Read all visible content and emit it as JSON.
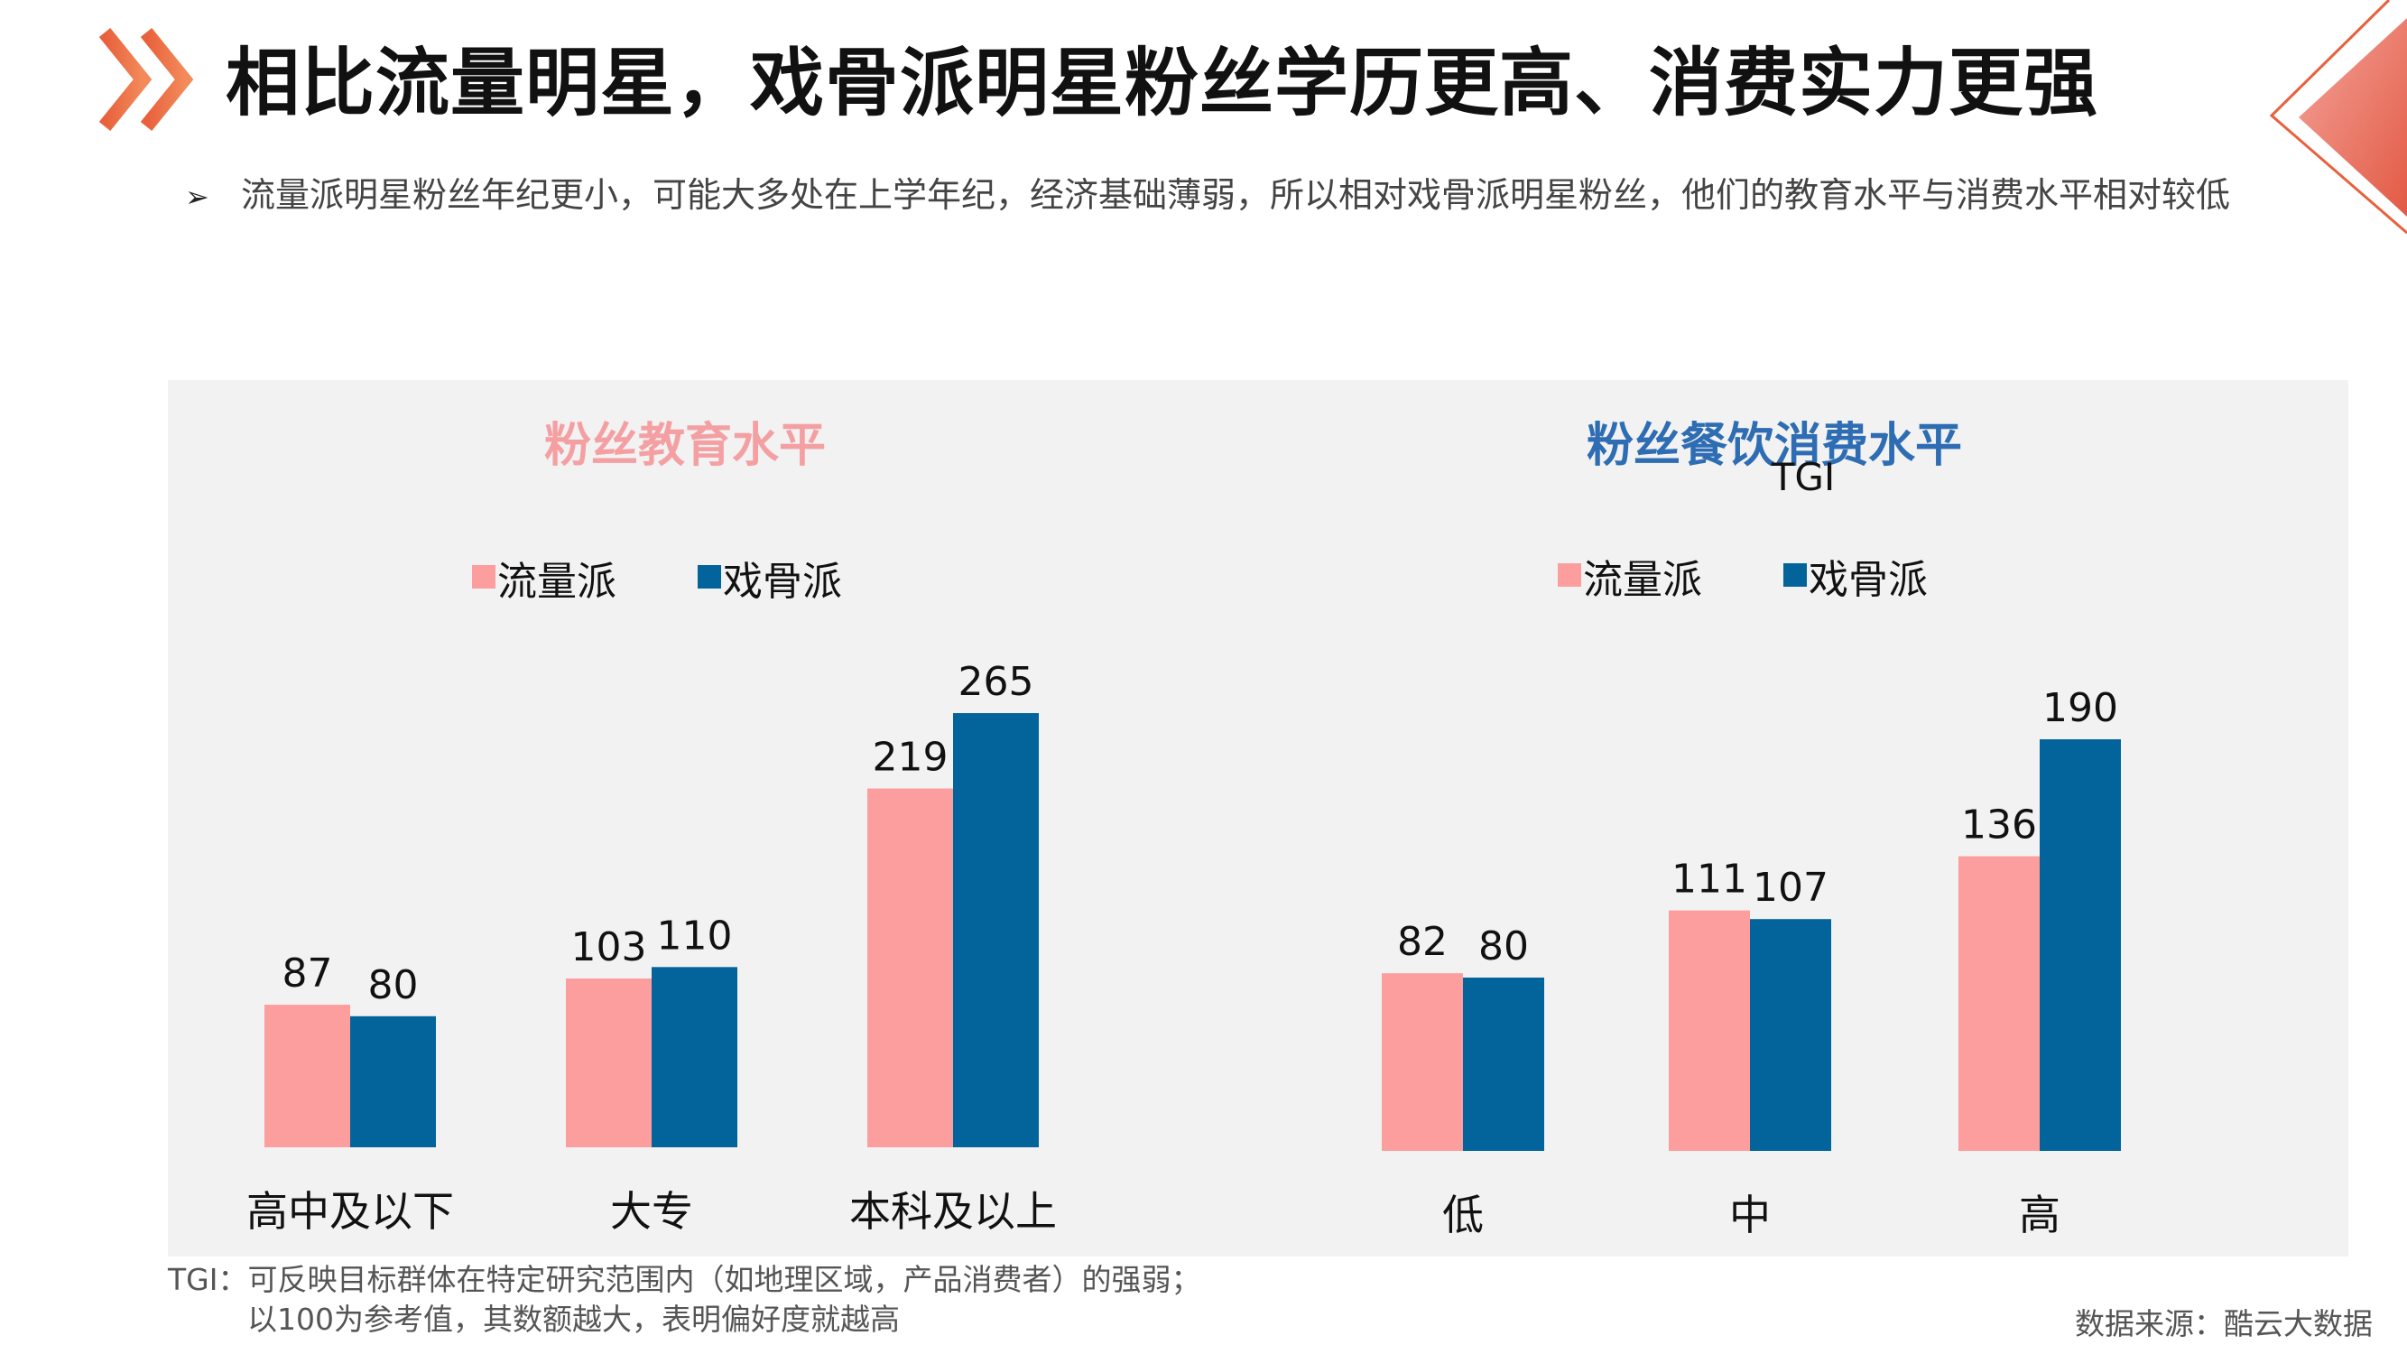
{
  "header": {
    "title": "相比流量明星，戏骨派明星粉丝学历更高、消费实力更强",
    "subtitle": "流量派明星粉丝年纪更小，可能大多处在上学年纪，经济基础薄弱，所以相对戏骨派明星粉丝，他们的教育水平与消费水平相对较低",
    "arrow": "➢"
  },
  "colors": {
    "series_a": "#FC9D9E",
    "series_b": "#02649A",
    "left_title": "#F4A0A3",
    "right_title": "#2E6DB3",
    "accent": "#E8603C"
  },
  "chart_data": [
    {
      "type": "bar",
      "title": "粉丝教育水平",
      "categories": [
        "高中及以下",
        "大专",
        "本科及以上"
      ],
      "series": [
        {
          "name": "流量派",
          "values": [
            87,
            103,
            219
          ]
        },
        {
          "name": "戏骨派",
          "values": [
            80,
            110,
            265
          ]
        }
      ],
      "ylim": [
        0,
        265
      ],
      "legend": "top"
    },
    {
      "type": "bar",
      "title": "粉丝餐饮消费水平",
      "ylabel": "TGI",
      "categories": [
        "低",
        "中",
        "高"
      ],
      "series": [
        {
          "name": "流量派",
          "values": [
            82,
            111,
            136
          ]
        },
        {
          "name": "戏骨派",
          "values": [
            80,
            107,
            190
          ]
        }
      ],
      "ylim": [
        0,
        190
      ],
      "legend": "top"
    }
  ],
  "footer": {
    "note_line1": "TGI：可反映目标群体在特定研究范围内（如地理区域，产品消费者）的强弱；",
    "note_line2": "以100为参考值，其数额越大，表明偏好度就越高",
    "source": "数据来源：酷云大数据"
  }
}
